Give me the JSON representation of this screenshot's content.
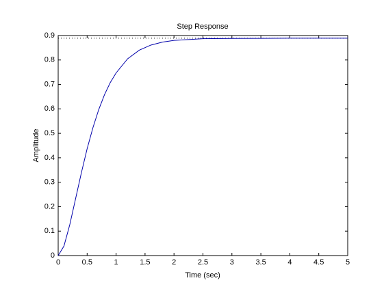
{
  "chart_data": {
    "type": "line",
    "title": "Step Response",
    "x_label": "Time (sec)",
    "y_label": "Amplitude",
    "x": [
      0,
      0.1,
      0.2,
      0.3,
      0.4,
      0.5,
      0.6,
      0.7,
      0.8,
      0.9,
      1.0,
      1.2,
      1.4,
      1.6,
      1.8,
      2.0,
      2.5,
      3.0,
      4.0,
      5.0
    ],
    "series": [
      {
        "color": "#0000aa",
        "values": [
          0,
          0.039,
          0.126,
          0.232,
          0.338,
          0.437,
          0.523,
          0.597,
          0.658,
          0.708,
          0.747,
          0.805,
          0.84,
          0.861,
          0.873,
          0.88,
          0.887,
          0.888,
          0.889,
          0.889
        ]
      }
    ],
    "reference_lines": [
      0.889
    ],
    "xlim": [
      0,
      5
    ],
    "ylim": [
      0,
      0.9
    ],
    "xticks": [
      0,
      0.5,
      1,
      1.5,
      2,
      2.5,
      3,
      3.5,
      4,
      4.5,
      5
    ],
    "yticks": [
      0,
      0.1,
      0.2,
      0.3,
      0.4,
      0.5,
      0.6,
      0.7,
      0.8,
      0.9
    ]
  }
}
